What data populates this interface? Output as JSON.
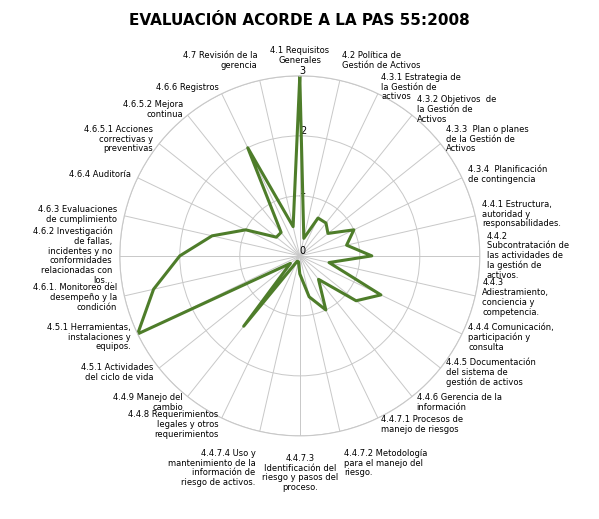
{
  "chart_data": {
    "type": "radar",
    "title": "EVALUACIÓN ACORDE A LA PAS 55:2008",
    "categories": [
      "4.1 Requisitos Generales",
      "4.2 Política de Gestión de Activos",
      "4.3.1 Estrategia de la Gestión de activos",
      "4.3.2 Objetivos  de la Gestión de Activos",
      "4.3.3  Plan o planes  de la Gestión de Activos",
      "4.3.4  Planificación  de contingencia",
      "4.4.1 Estructura, autoridad y responsabilidades.",
      "4.4.2 Subcontratación de las actividades de la gestión de activos.",
      "4.4.3 Adiestramiento, conciencia y competencia.",
      "4.4.4 Comunicación, participación y consulta",
      "4.4.5 Documentación del sistema de gestión de activos",
      "4.4.6 Gerencia de la información",
      "4.4.7.1 Procesos de manejo de riesgos",
      "4.4.7.2 Metodología para el manejo del riesgo.",
      "4.4.7.3 Identificación del riesgo y pasos del proceso.",
      "4.4.7.4 Uso y mantenimiento de la información de riesgo de activos.",
      "4.4.8 Requerimientos legales y otros requerimientos",
      "4.4.9 Manejo del cambio",
      "4.5.1 Actividades del ciclo de vida",
      "4.5.1 Herramientas, instalaciones y equipos.",
      "4.6.1. Monitoreo del desempeño y la condición",
      "4.6.2 Investigación de fallas, incidentes y no conformidades relacionadas con los...",
      "4.6.3 Evaluaciones de cumplimiento",
      "4.6.4 Auditoría",
      "4.6.5.1 Acciones correctivas y preventivas",
      "4.6.5.2 Mejora continua",
      "4.6.6 Registros",
      "4.7 Revisión de la gerencia"
    ],
    "values": [
      3,
      0.3,
      0.7,
      0.7,
      0.6,
      1,
      0.8,
      1.2,
      0.5,
      1.5,
      1.2,
      0.5,
      1,
      0.7,
      0.3,
      0.1,
      0.1,
      1.5,
      0.2,
      3,
      2.5,
      2,
      1.5,
      1,
      0.5,
      0.5,
      2,
      0.5
    ],
    "color": "#4e7d2a",
    "ylim": [
      0,
      3
    ],
    "yticks": [
      0,
      1,
      2,
      3
    ],
    "grid": true
  }
}
